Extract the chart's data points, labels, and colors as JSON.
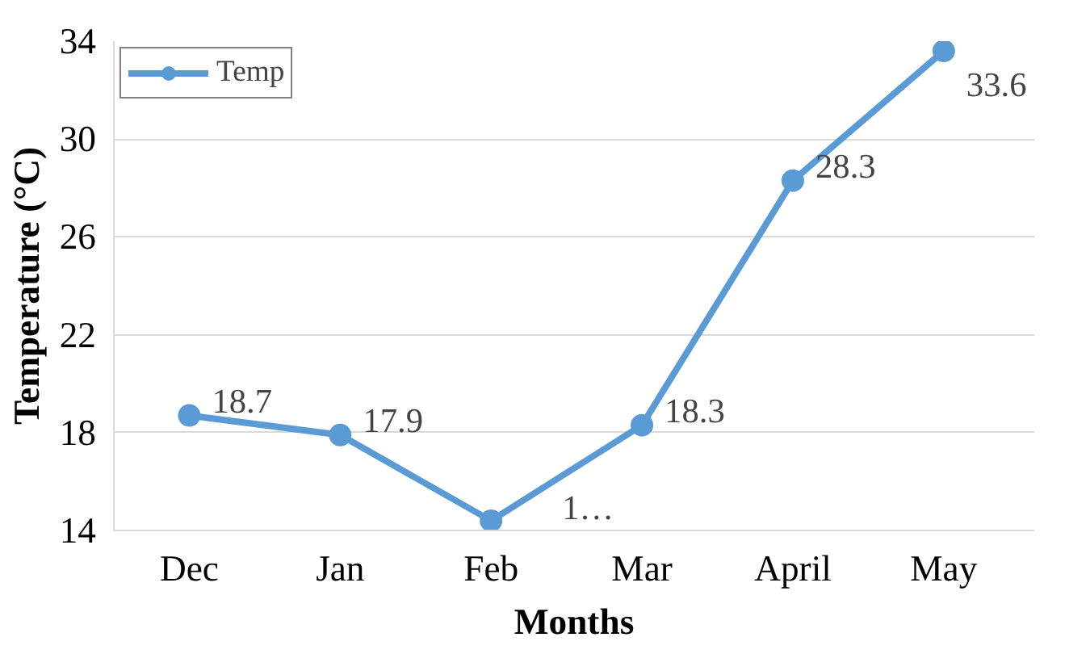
{
  "chart_data": {
    "type": "line",
    "xlabel": "Months",
    "ylabel": "Temperature (°C)",
    "categories": [
      "Dec",
      "Jan",
      "Feb",
      "Mar",
      "April",
      "May"
    ],
    "series": [
      {
        "name": "Temp",
        "color": "#5b9bd5",
        "values": [
          18.7,
          17.9,
          14.4,
          18.3,
          28.3,
          33.6
        ],
        "value_labels": [
          "18.7",
          "17.9",
          "1…",
          "18.3",
          "28.3",
          "33.6"
        ]
      }
    ],
    "ylim": [
      14,
      34
    ],
    "yticks": [
      14,
      18,
      22,
      26,
      30,
      34
    ],
    "grid": "y",
    "legend": "top left",
    "marker": "circle",
    "line_style": "solid"
  }
}
